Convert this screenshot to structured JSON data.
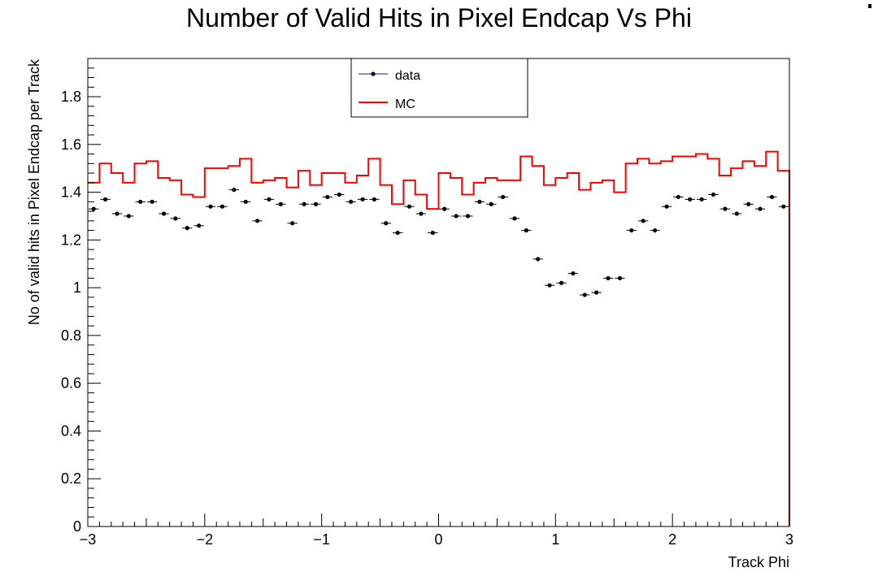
{
  "chart_data": {
    "type": "line",
    "title": "Number of Valid Hits in Pixel Endcap Vs Phi",
    "xlabel": "Track Phi",
    "ylabel": "No of valid hits in Pixel Endcap per Track",
    "xlim": [
      -3,
      3
    ],
    "ylim": [
      0,
      1.96
    ],
    "x_ticks": [
      "−3",
      "−2",
      "−1",
      "0",
      "1",
      "2",
      "3"
    ],
    "y_ticks": [
      "0",
      "0.2",
      "0.4",
      "0.6",
      "0.8",
      "1",
      "1.2",
      "1.4",
      "1.6",
      "1.8"
    ],
    "legend": {
      "position": "top-center",
      "entries": [
        "data",
        "MC"
      ]
    },
    "grid": false,
    "bin_edges_count": 61,
    "series": [
      {
        "name": "data",
        "style": "markers-with-x-errors",
        "color": "#000000",
        "values": [
          1.33,
          1.37,
          1.31,
          1.3,
          1.36,
          1.36,
          1.31,
          1.29,
          1.25,
          1.26,
          1.34,
          1.34,
          1.41,
          1.36,
          1.28,
          1.37,
          1.35,
          1.27,
          1.35,
          1.35,
          1.38,
          1.39,
          1.36,
          1.37,
          1.37,
          1.27,
          1.23,
          1.34,
          1.31,
          1.23,
          1.33,
          1.3,
          1.3,
          1.36,
          1.35,
          1.38,
          1.29,
          1.24,
          1.12,
          1.01,
          1.02,
          1.06,
          0.97,
          0.98,
          1.04,
          1.04,
          1.24,
          1.28,
          1.24,
          1.34,
          1.38,
          1.37,
          1.37,
          1.39,
          1.33,
          1.31,
          1.35,
          1.33,
          1.38,
          1.34
        ]
      },
      {
        "name": "MC",
        "style": "step",
        "color": "#ff0000",
        "values": [
          1.44,
          1.52,
          1.48,
          1.44,
          1.52,
          1.53,
          1.46,
          1.45,
          1.39,
          1.38,
          1.5,
          1.5,
          1.51,
          1.54,
          1.44,
          1.45,
          1.46,
          1.42,
          1.49,
          1.43,
          1.48,
          1.48,
          1.44,
          1.47,
          1.54,
          1.43,
          1.35,
          1.45,
          1.39,
          1.33,
          1.48,
          1.46,
          1.39,
          1.44,
          1.46,
          1.45,
          1.45,
          1.55,
          1.51,
          1.43,
          1.46,
          1.48,
          1.41,
          1.44,
          1.45,
          1.4,
          1.52,
          1.54,
          1.52,
          1.53,
          1.55,
          1.55,
          1.56,
          1.54,
          1.47,
          1.5,
          1.53,
          1.51,
          1.57,
          1.49
        ]
      }
    ]
  }
}
